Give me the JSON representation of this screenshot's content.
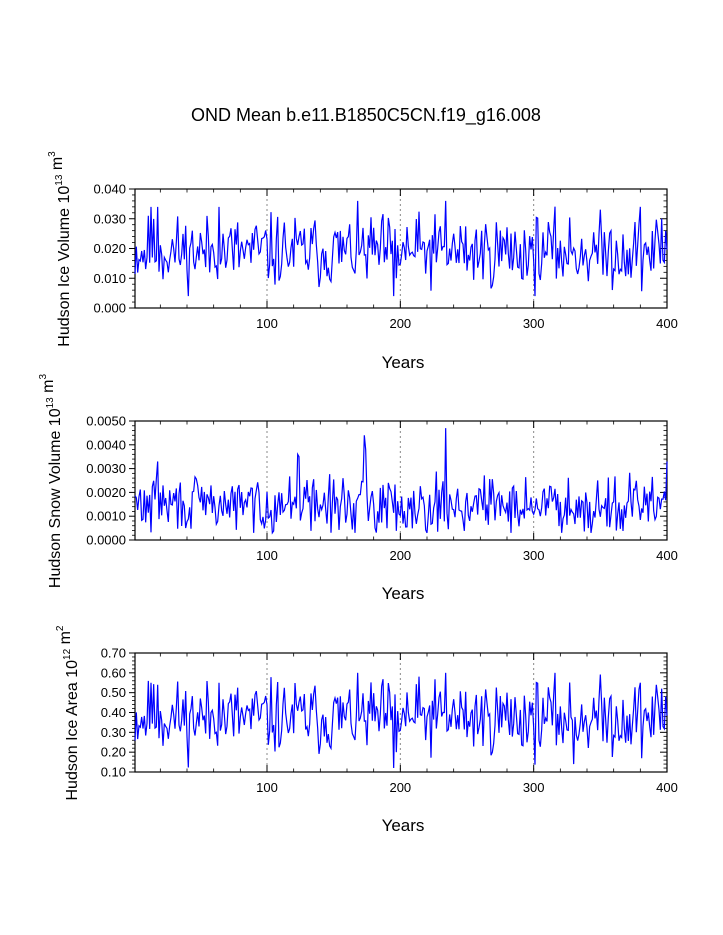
{
  "page_title": "OND Mean b.e11.B1850C5CN.f19_g16.008",
  "chart_data": [
    {
      "type": "line",
      "title": "OND Mean b.e11.B1850C5CN.f19_g16.008",
      "ylabel": "Hudson Ice Volume 10^13 m^3",
      "xlabel": "Years",
      "xlim": [
        1,
        400
      ],
      "ylim": [
        0.0,
        0.04
      ],
      "y_ticks": [
        0.0,
        0.01,
        0.02,
        0.03,
        0.04
      ],
      "y_tick_labels": [
        "0.000",
        "0.010",
        "0.020",
        "0.030",
        "0.040"
      ],
      "x_ticks": [
        100,
        200,
        300,
        400
      ],
      "x_tick_labels": [
        "100",
        "200",
        "300",
        "400"
      ],
      "gridlines_x": [
        100,
        200,
        300
      ],
      "line_color": "#0000ff",
      "series": [
        {
          "name": "Hudson Ice Volume",
          "base": 0.019,
          "amp": 0.0052,
          "min": 0.004,
          "max": 0.036,
          "seed": 11,
          "spikes": [
            [
              13,
              0.034
            ],
            [
              18,
              0.034
            ],
            [
              64,
              0.034
            ],
            [
              195,
              0.004
            ],
            [
              197,
              0.01
            ],
            [
              234,
              0.036
            ],
            [
              380,
              0.034
            ],
            [
              396,
              0.03
            ]
          ]
        }
      ]
    },
    {
      "type": "line",
      "ylabel": "Hudson Snow Volume 10^13 m^3",
      "xlabel": "Years",
      "xlim": [
        1,
        400
      ],
      "ylim": [
        0.0,
        0.005
      ],
      "y_ticks": [
        0.0,
        0.001,
        0.002,
        0.003,
        0.004,
        0.005
      ],
      "y_tick_labels": [
        "0.0000",
        "0.0010",
        "0.0020",
        "0.0030",
        "0.0040",
        "0.0050"
      ],
      "x_ticks": [
        100,
        200,
        300,
        400
      ],
      "x_tick_labels": [
        "100",
        "200",
        "300",
        "400"
      ],
      "gridlines_x": [
        100,
        200,
        300
      ],
      "line_color": "#0000ff",
      "series": [
        {
          "name": "Hudson Snow Volume",
          "base": 0.00148,
          "amp": 0.0005,
          "min": 0.0003,
          "max": 0.0047,
          "seed": 29,
          "spikes": [
            [
              18,
              0.0033
            ],
            [
              123,
              0.0036
            ],
            [
              124,
              0.0035
            ],
            [
              173,
              0.0044
            ],
            [
              174,
              0.0038
            ],
            [
              234,
              0.0047
            ],
            [
              400,
              0.0033
            ]
          ]
        }
      ]
    },
    {
      "type": "line",
      "ylabel": "Hudson Ice Area 10^12 m^2",
      "xlabel": "Years",
      "xlim": [
        1,
        400
      ],
      "ylim": [
        0.1,
        0.7
      ],
      "y_ticks": [
        0.1,
        0.2,
        0.3,
        0.4,
        0.5,
        0.6,
        0.7
      ],
      "y_tick_labels": [
        "0.10",
        "0.20",
        "0.30",
        "0.40",
        "0.50",
        "0.60",
        "0.70"
      ],
      "x_ticks": [
        100,
        200,
        300,
        400
      ],
      "x_tick_labels": [
        "100",
        "200",
        "300",
        "400"
      ],
      "gridlines_x": [
        100,
        200,
        300
      ],
      "line_color": "#0000ff",
      "series": [
        {
          "name": "Hudson Ice Area",
          "base": 0.375,
          "amp": 0.08,
          "min": 0.12,
          "max": 0.6,
          "seed": 11,
          "spikes": [
            [
              13,
              0.55
            ],
            [
              18,
              0.54
            ],
            [
              64,
              0.55
            ],
            [
              195,
              0.12
            ],
            [
              197,
              0.2
            ],
            [
              234,
              0.6
            ],
            [
              330,
              0.14
            ],
            [
              380,
              0.55
            ],
            [
              396,
              0.52
            ]
          ]
        }
      ]
    }
  ]
}
